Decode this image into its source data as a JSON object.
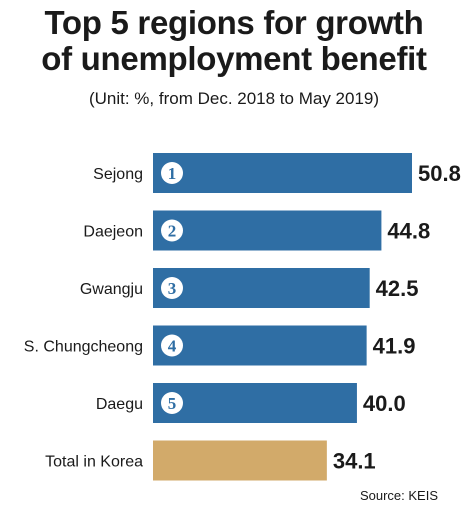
{
  "header": {
    "title_line1": "Top 5 regions for growth",
    "title_line2": "of unemployment benefit",
    "subtitle": "(Unit: %, from Dec. 2018 to May 2019)"
  },
  "footer": {
    "source": "Source: KEIS"
  },
  "colors": {
    "bar_blue": "#2f6ea4",
    "bar_total": "#d2aa6a",
    "rank_circle": "#ffffff"
  },
  "chart_data": {
    "type": "bar",
    "orientation": "horizontal",
    "categories": [
      "Sejong",
      "Daejeon",
      "Gwangju",
      "S. Chungcheong",
      "Daegu",
      "Total in Korea"
    ],
    "values": [
      50.8,
      44.8,
      42.5,
      41.9,
      40.0,
      34.1
    ],
    "value_labels": [
      "50.8",
      "44.8",
      "42.5",
      "41.9",
      "40.0",
      "34.1"
    ],
    "ranks": [
      "1",
      "2",
      "3",
      "4",
      "5",
      ""
    ],
    "highlight": [
      false,
      false,
      false,
      false,
      false,
      true
    ],
    "title": "Top 5 regions for growth of unemployment benefit",
    "subtitle": "(Unit: %, from Dec. 2018 to May 2019)",
    "xlim": [
      0,
      50.8
    ],
    "grid": false,
    "legend": "none"
  }
}
